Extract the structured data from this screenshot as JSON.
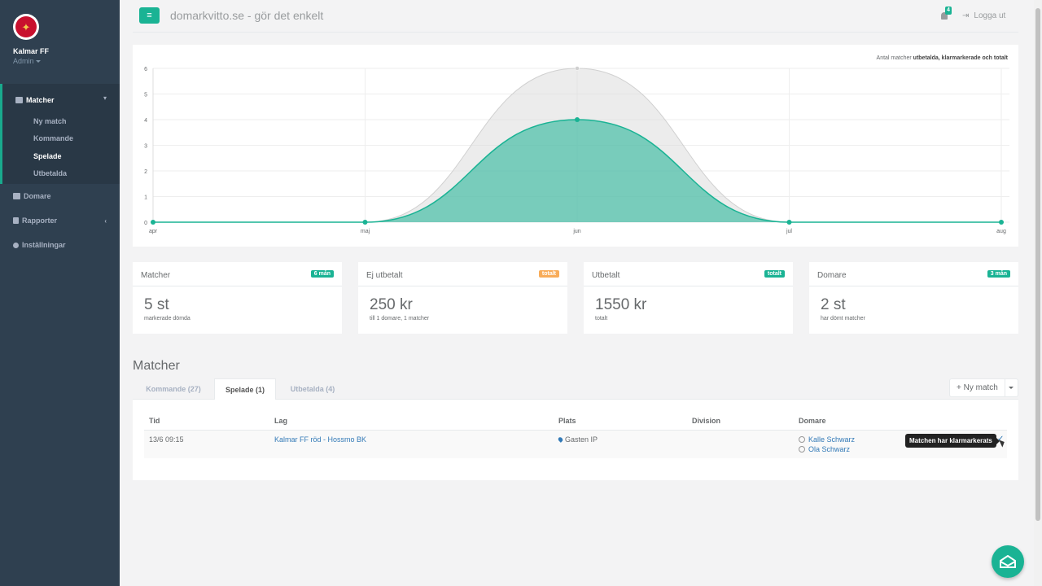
{
  "sidebar": {
    "club_name": "Kalmar FF",
    "role": "Admin",
    "logo_icon": "club-crest-icon",
    "sections": [
      {
        "label": "Matcher",
        "icon": "calendar-icon"
      },
      {
        "label": "Domare",
        "icon": "users-icon"
      },
      {
        "label": "Rapporter",
        "icon": "file-icon"
      },
      {
        "label": "Inställningar",
        "icon": "gear-icon"
      }
    ],
    "sub_items": [
      "Ny match",
      "Kommande",
      "Spelade",
      "Utbetalda"
    ],
    "active_sub": "Spelade"
  },
  "header": {
    "title": "domarkvitto.se - gör det enkelt",
    "notifications": "4",
    "logout": "Logga ut"
  },
  "chart_caption": {
    "prefix": "Antal matcher ",
    "bold": "utbetalda, klarmarkerade och totalt"
  },
  "chart_data": {
    "type": "area",
    "categories": [
      "apr",
      "maj",
      "jun",
      "jul",
      "aug"
    ],
    "series": [
      {
        "name": "totalt",
        "values": [
          0,
          0,
          6,
          0,
          0
        ],
        "color": "#dcdcdc"
      },
      {
        "name": "klarmarkerade",
        "values": [
          0,
          0,
          4,
          0,
          0
        ],
        "color": "#1ab394"
      }
    ],
    "ylim": [
      0,
      6
    ],
    "yticks": [
      0,
      1,
      2,
      3,
      4,
      5,
      6
    ],
    "grid": true
  },
  "widgets": [
    {
      "title": "Matcher",
      "label": "6 mån",
      "label_color": "#1ab394",
      "value": "5 st",
      "sub": "markerade dömda"
    },
    {
      "title": "Ej utbetalt",
      "label": "totalt",
      "label_color": "#f8ac59",
      "value": "250 kr",
      "sub": "till 1 domare, 1 matcher"
    },
    {
      "title": "Utbetalt",
      "label": "totalt",
      "label_color": "#1ab394",
      "value": "1550 kr",
      "sub": "totalt"
    },
    {
      "title": "Domare",
      "label": "3 mån",
      "label_color": "#1ab394",
      "value": "2 st",
      "sub": "har dömt matcher"
    }
  ],
  "matches": {
    "title": "Matcher",
    "tabs": [
      "Kommande (27)",
      "Spelade (1)",
      "Utbetalda (4)"
    ],
    "active_tab": 1,
    "new_button": "Ny match",
    "columns": [
      "Tid",
      "Lag",
      "Plats",
      "Division",
      "Domare"
    ],
    "rows": [
      {
        "tid": "13/6 09:15",
        "lag": "Kalmar FF röd - Hossmo BK",
        "plats": "Gasten IP",
        "division": "",
        "domare": [
          "Kalle Schwarz",
          "Ola Schwarz"
        ]
      }
    ],
    "tooltip": "Matchen har klarmarkerats"
  }
}
